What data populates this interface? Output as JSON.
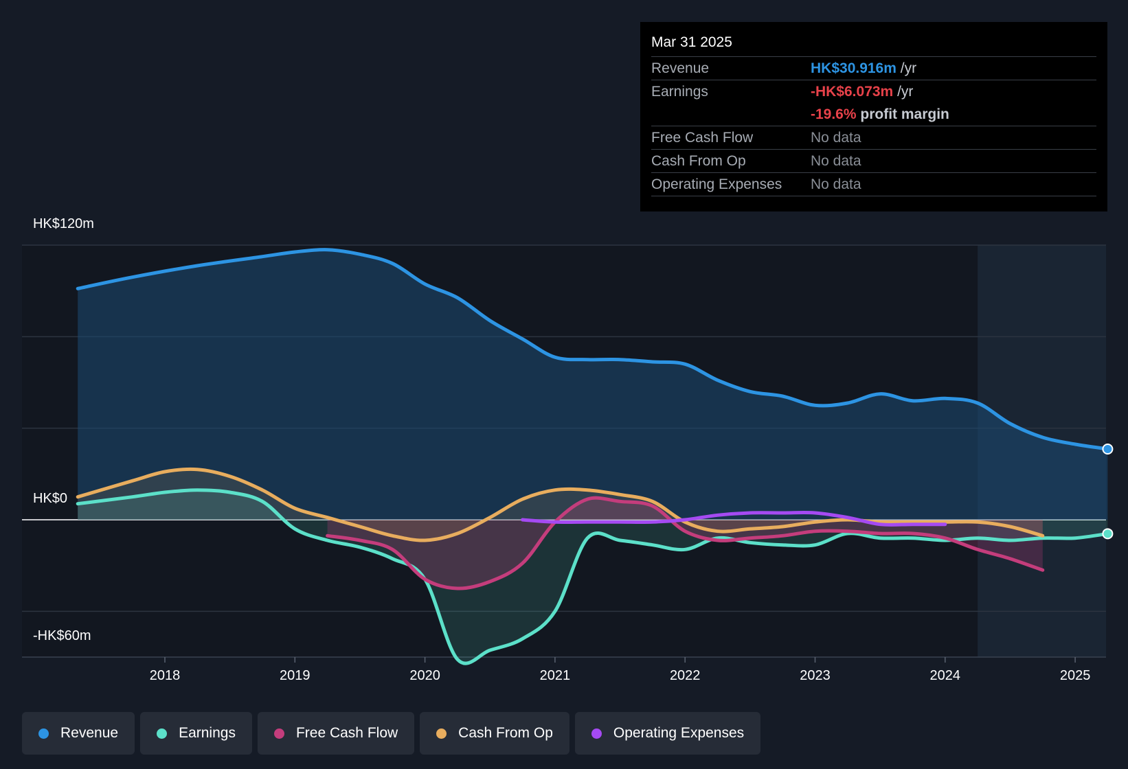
{
  "tooltip": {
    "date": "Mar 31 2025",
    "revenue_label": "Revenue",
    "revenue_value": "HK$30.916m",
    "revenue_unit": "/yr",
    "earnings_label": "Earnings",
    "earnings_value": "-HK$6.073m",
    "earnings_unit": "/yr",
    "margin_value": "-19.6%",
    "margin_label": "profit margin",
    "fcf_label": "Free Cash Flow",
    "fcf_value": "No data",
    "cfo_label": "Cash From Op",
    "cfo_value": "No data",
    "opex_label": "Operating Expenses",
    "opex_value": "No data"
  },
  "legend": [
    {
      "label": "Revenue",
      "color": "#2d94e3"
    },
    {
      "label": "Earnings",
      "color": "#5ce0c9"
    },
    {
      "label": "Free Cash Flow",
      "color": "#c43d7c"
    },
    {
      "label": "Cash From Op",
      "color": "#e8ad5e"
    },
    {
      "label": "Operating Expenses",
      "color": "#a54af2"
    }
  ],
  "chart_data": {
    "type": "line",
    "title": "",
    "xlabel": "",
    "ylabel": "",
    "ylim": [
      -60,
      120
    ],
    "y_tick_labels": [
      "HK$120m",
      "HK$0",
      "-HK$60m"
    ],
    "y_tick_values": [
      120,
      0,
      -60
    ],
    "x_ticks": [
      2018,
      2019,
      2020,
      2021,
      2022,
      2023,
      2024,
      2025
    ],
    "x_tick_labels": [
      "2018",
      "2019",
      "2020",
      "2021",
      "2022",
      "2023",
      "2024",
      "2025"
    ],
    "forecast_start": 2024.25,
    "series": [
      {
        "name": "Revenue",
        "color": "#2d94e3",
        "fill": true,
        "x": [
          2017.33,
          2017.75,
          2018.25,
          2018.75,
          2019.0,
          2019.25,
          2019.5,
          2019.75,
          2020.0,
          2020.25,
          2020.5,
          2020.75,
          2021.0,
          2021.25,
          2021.5,
          2021.75,
          2022.0,
          2022.25,
          2022.5,
          2022.75,
          2023.0,
          2023.25,
          2023.5,
          2023.75,
          2024.0,
          2024.25,
          2024.5,
          2024.75,
          2025.0,
          2025.25
        ],
        "y": [
          101,
          106,
          111,
          115,
          117,
          118,
          116,
          112,
          103,
          97,
          87,
          79,
          71,
          70,
          70,
          69,
          68,
          61,
          56,
          54,
          50,
          51,
          55,
          52,
          53,
          51,
          42,
          36,
          33,
          30.9
        ]
      },
      {
        "name": "Earnings",
        "color": "#5ce0c9",
        "fill": true,
        "x": [
          2017.33,
          2017.75,
          2018.0,
          2018.25,
          2018.5,
          2018.75,
          2019.0,
          2019.25,
          2019.5,
          2019.75,
          2020.0,
          2020.25,
          2020.5,
          2020.75,
          2021.0,
          2021.25,
          2021.5,
          2021.75,
          2022.0,
          2022.25,
          2022.5,
          2022.75,
          2023.0,
          2023.25,
          2023.5,
          2023.75,
          2024.0,
          2024.25,
          2024.5,
          2024.75,
          2025.0,
          2025.25
        ],
        "y": [
          7,
          10,
          12,
          13,
          12,
          8,
          -4,
          -9,
          -12,
          -17,
          -26,
          -61,
          -57,
          -52,
          -40,
          -8,
          -9,
          -11,
          -13,
          -8,
          -10,
          -11,
          -11,
          -6,
          -8,
          -8,
          -9,
          -8,
          -9,
          -8,
          -8,
          -6.1
        ]
      },
      {
        "name": "Free Cash Flow",
        "color": "#c43d7c",
        "fill": true,
        "x": [
          2019.25,
          2019.5,
          2019.75,
          2020.0,
          2020.25,
          2020.5,
          2020.75,
          2021.0,
          2021.25,
          2021.5,
          2021.75,
          2022.0,
          2022.25,
          2022.5,
          2022.75,
          2023.0,
          2023.25,
          2023.5,
          2023.75,
          2024.0,
          2024.25,
          2024.5,
          2024.75
        ],
        "y": [
          -7,
          -9,
          -13,
          -26,
          -30,
          -27,
          -19,
          -1,
          9,
          8,
          6,
          -5,
          -9,
          -8,
          -7,
          -5,
          -5,
          -6,
          -6,
          -8,
          -13,
          -17,
          -22
        ]
      },
      {
        "name": "Cash From Op",
        "color": "#e8ad5e",
        "fill": true,
        "x": [
          2017.33,
          2017.75,
          2018.0,
          2018.25,
          2018.5,
          2018.75,
          2019.0,
          2019.25,
          2019.5,
          2019.75,
          2020.0,
          2020.25,
          2020.5,
          2020.75,
          2021.0,
          2021.25,
          2021.5,
          2021.75,
          2022.0,
          2022.25,
          2022.5,
          2022.75,
          2023.0,
          2023.25,
          2023.5,
          2023.75,
          2024.0,
          2024.25,
          2024.5,
          2024.75
        ],
        "y": [
          10,
          17,
          21,
          22,
          19,
          13,
          5,
          1,
          -3,
          -7,
          -9,
          -6,
          1,
          9,
          13,
          13,
          11,
          8,
          -1,
          -5,
          -4,
          -3,
          -1,
          0,
          -1,
          -1,
          -1,
          -1,
          -3,
          -7
        ]
      },
      {
        "name": "Operating Expenses",
        "color": "#a54af2",
        "fill": false,
        "x": [
          2020.75,
          2021.0,
          2021.25,
          2021.5,
          2021.75,
          2022.0,
          2022.25,
          2022.5,
          2022.75,
          2023.0,
          2023.25,
          2023.5,
          2023.75,
          2024.0
        ],
        "y": [
          0,
          -1,
          -1,
          -1,
          -1,
          0,
          2,
          3,
          3,
          3,
          1,
          -2,
          -2,
          -2
        ]
      }
    ]
  }
}
